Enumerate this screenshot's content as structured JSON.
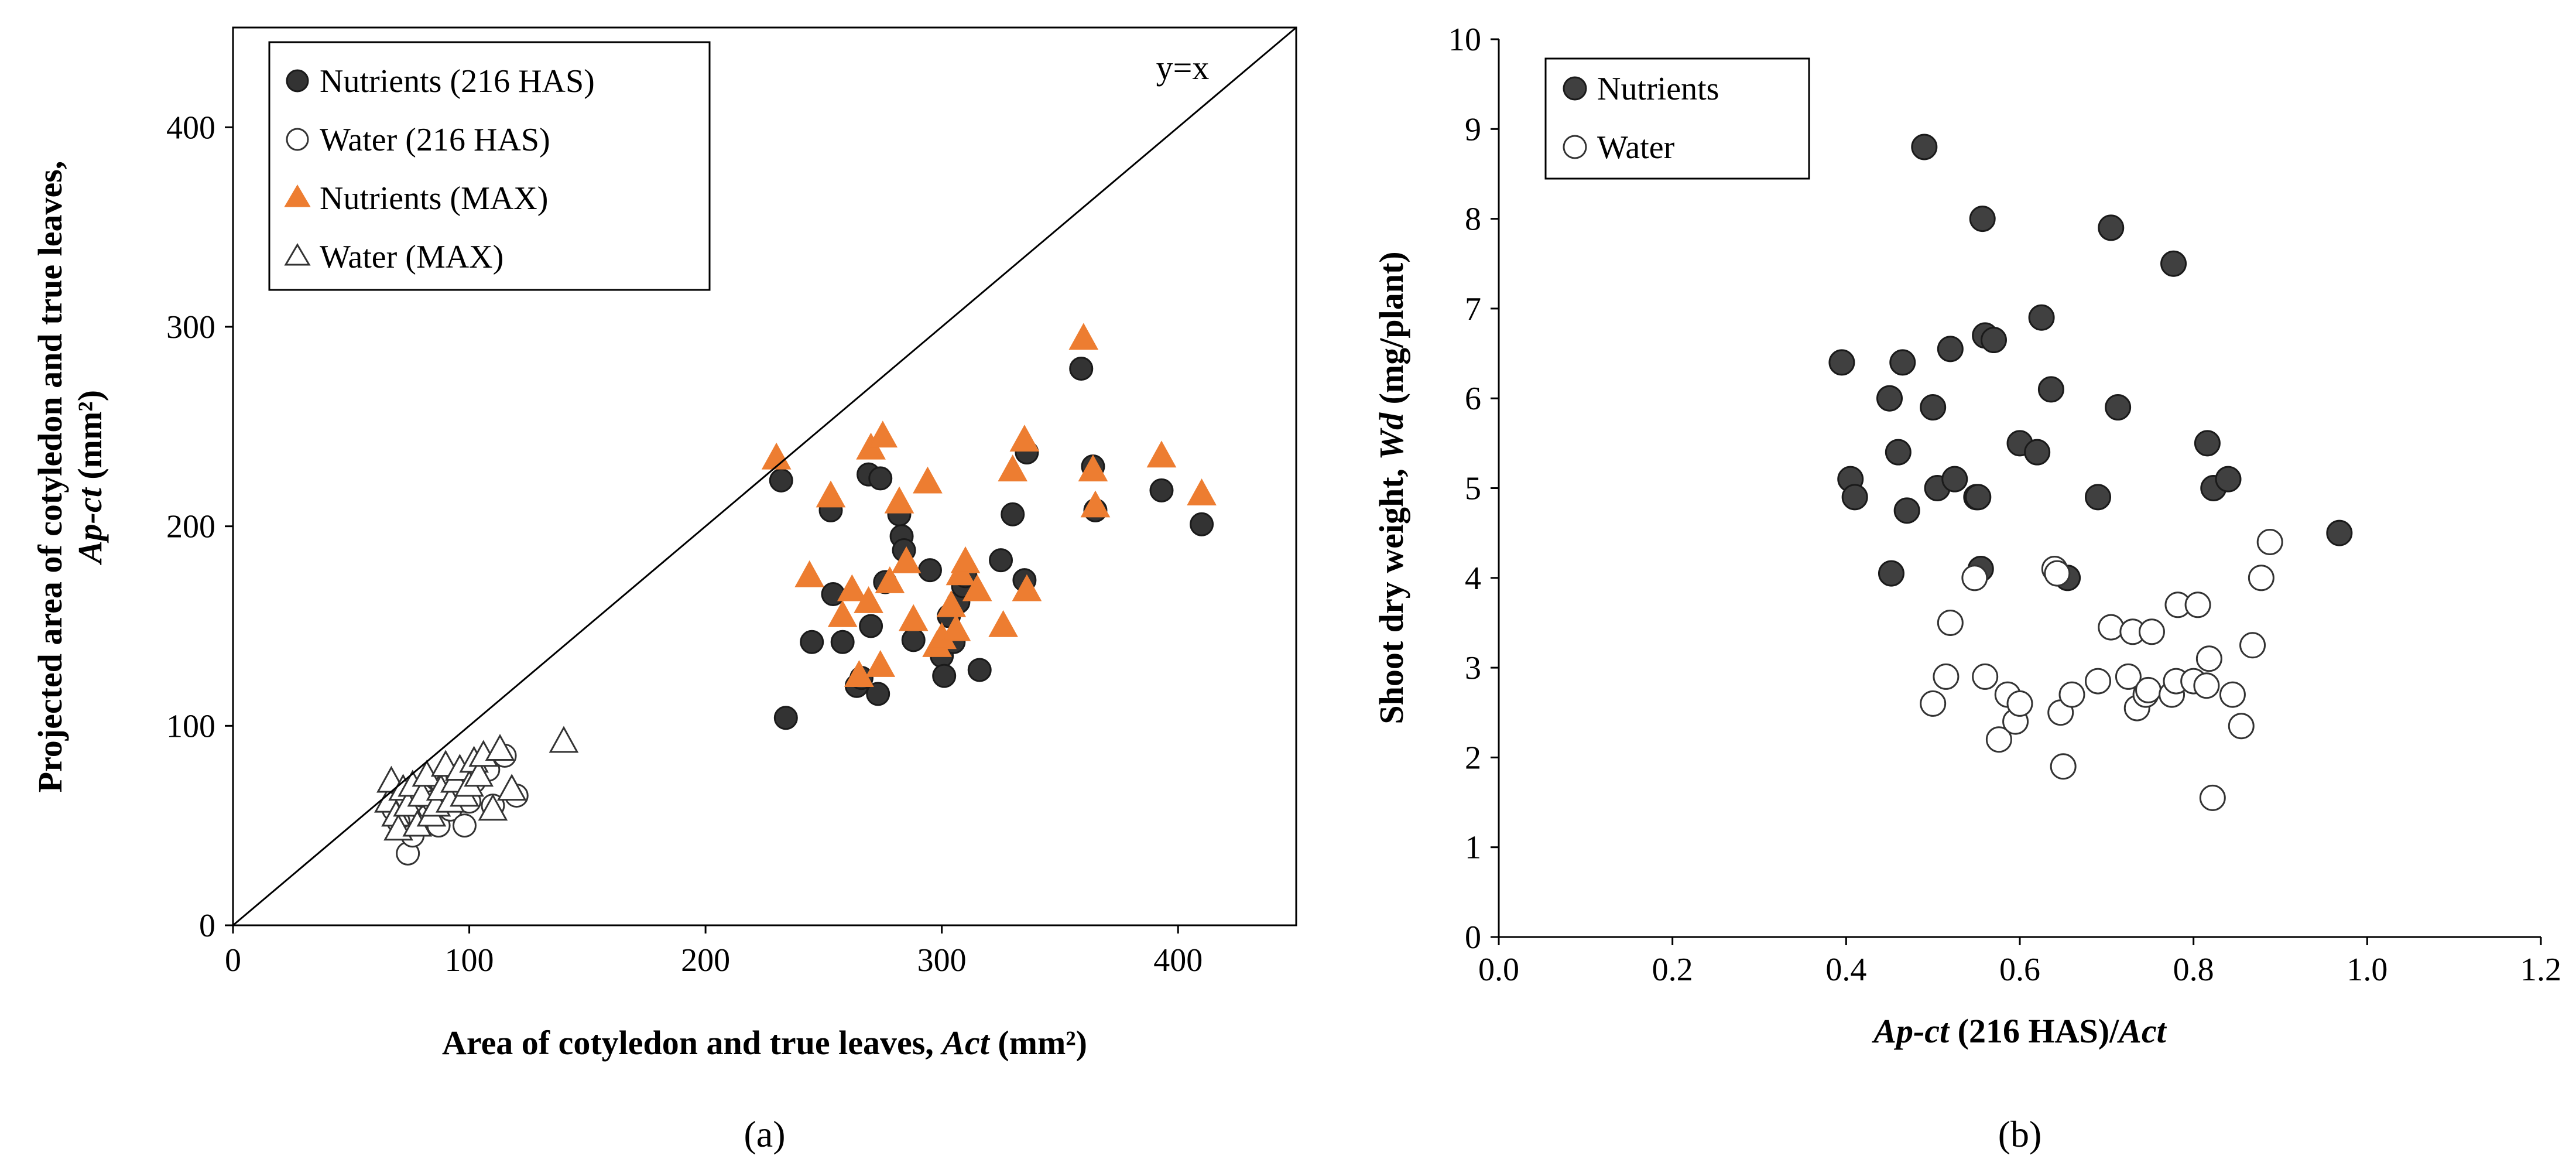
{
  "chart_data": [
    {
      "type": "scatter",
      "panel_label": "(a)",
      "xlabel": {
        "prefix": "Area of cotyledon and true leaves, ",
        "var": "Act",
        "suffix": " (mm²)"
      },
      "ylabel": {
        "line1": "Projected area of cotyledon and true leaves,",
        "var": "Ap-ct",
        "suffix": " (mm²)"
      },
      "xlim": [
        0,
        450
      ],
      "ylim": [
        0,
        450
      ],
      "xticks": [
        0,
        100,
        200,
        300,
        400
      ],
      "yticks": [
        0,
        100,
        200,
        300,
        400
      ],
      "grid": false,
      "legend_position": "top-left",
      "annotation": "y=x",
      "reference_line": {
        "label": "y=x",
        "from": [
          0,
          0
        ],
        "to": [
          450,
          450
        ]
      },
      "series": [
        {
          "name": "Nutrients (216 HAS)",
          "marker": "circle",
          "fill": "#333333",
          "stroke": "#1a1a1a",
          "points": [
            [
              232,
              223
            ],
            [
              234,
              104
            ],
            [
              245,
              142
            ],
            [
              253,
              208
            ],
            [
              254,
              166
            ],
            [
              258,
              142
            ],
            [
              264,
              120
            ],
            [
              266,
              124
            ],
            [
              269,
              226
            ],
            [
              270,
              150
            ],
            [
              273,
              116
            ],
            [
              274,
              224
            ],
            [
              276,
              172
            ],
            [
              282,
              206
            ],
            [
              283,
              195
            ],
            [
              284,
              188
            ],
            [
              288,
              143
            ],
            [
              295,
              178
            ],
            [
              300,
              135
            ],
            [
              301,
              125
            ],
            [
              303,
              155
            ],
            [
              305,
              142
            ],
            [
              307,
              162
            ],
            [
              309,
              170
            ],
            [
              310,
              175
            ],
            [
              316,
              128
            ],
            [
              325,
              183
            ],
            [
              330,
              206
            ],
            [
              335,
              173
            ],
            [
              336,
              237
            ],
            [
              359,
              279
            ],
            [
              364,
              230
            ],
            [
              365,
              208
            ],
            [
              393,
              218
            ],
            [
              410,
              201
            ]
          ]
        },
        {
          "name": "Water (216 HAS)",
          "marker": "circle",
          "fill": "#ffffff",
          "stroke": "#333333",
          "points": [
            [
              68,
              58
            ],
            [
              70,
              52
            ],
            [
              72,
              62
            ],
            [
              74,
              36
            ],
            [
              76,
              45
            ],
            [
              78,
              60
            ],
            [
              80,
              65
            ],
            [
              83,
              55
            ],
            [
              85,
              62
            ],
            [
              87,
              50
            ],
            [
              88,
              72
            ],
            [
              90,
              70
            ],
            [
              92,
              58
            ],
            [
              95,
              75
            ],
            [
              96,
              68
            ],
            [
              98,
              50
            ],
            [
              100,
              62
            ],
            [
              102,
              72
            ],
            [
              105,
              80
            ],
            [
              108,
              78
            ],
            [
              110,
              60
            ],
            [
              115,
              85
            ],
            [
              120,
              65
            ]
          ]
        },
        {
          "name": "Nutrients (MAX)",
          "marker": "triangle",
          "fill": "#ed7d31",
          "stroke": "#ed7d31",
          "points": [
            [
              230,
              234
            ],
            [
              244,
              175
            ],
            [
              253,
              215
            ],
            [
              258,
              155
            ],
            [
              262,
              168
            ],
            [
              265,
              125
            ],
            [
              269,
              162
            ],
            [
              270,
              239
            ],
            [
              274,
              130
            ],
            [
              275,
              245
            ],
            [
              278,
              172
            ],
            [
              282,
              212
            ],
            [
              285,
              182
            ],
            [
              288,
              153
            ],
            [
              294,
              222
            ],
            [
              298,
              140
            ],
            [
              300,
              144
            ],
            [
              304,
              160
            ],
            [
              306,
              148
            ],
            [
              308,
              176
            ],
            [
              310,
              182
            ],
            [
              315,
              168
            ],
            [
              326,
              150
            ],
            [
              330,
              228
            ],
            [
              335,
              243
            ],
            [
              336,
              168
            ],
            [
              360,
              294
            ],
            [
              364,
              228
            ],
            [
              365,
              210
            ],
            [
              393,
              235
            ],
            [
              410,
              216
            ]
          ]
        },
        {
          "name": "Water (MAX)",
          "marker": "triangle",
          "fill": "#ffffff",
          "stroke": "#333333",
          "points": [
            [
              66,
              62
            ],
            [
              67,
              72
            ],
            [
              69,
              55
            ],
            [
              70,
              48
            ],
            [
              72,
              68
            ],
            [
              74,
              60
            ],
            [
              76,
              70
            ],
            [
              78,
              50
            ],
            [
              80,
              65
            ],
            [
              82,
              75
            ],
            [
              84,
              55
            ],
            [
              86,
              60
            ],
            [
              88,
              68
            ],
            [
              90,
              80
            ],
            [
              92,
              62
            ],
            [
              94,
              72
            ],
            [
              96,
              78
            ],
            [
              98,
              65
            ],
            [
              100,
              70
            ],
            [
              102,
              82
            ],
            [
              104,
              75
            ],
            [
              106,
              85
            ],
            [
              110,
              58
            ],
            [
              113,
              88
            ],
            [
              118,
              68
            ],
            [
              140,
              92
            ]
          ]
        }
      ]
    },
    {
      "type": "scatter",
      "panel_label": "(b)",
      "xlabel": {
        "var1": "Ap-ct",
        "middle": " (216 HAS)/",
        "var2": "Act"
      },
      "ylabel": {
        "prefix": "Shoot dry weight, ",
        "var": "Wd",
        "suffix": " (mg/plant)"
      },
      "xlim": [
        0,
        1.2
      ],
      "ylim": [
        0,
        10
      ],
      "xticks": [
        "0.0",
        "0.2",
        "0.4",
        "0.6",
        "0.8",
        "1.0",
        "1.2"
      ],
      "yticks": [
        "0",
        "1",
        "2",
        "3",
        "4",
        "5",
        "6",
        "7",
        "8",
        "9",
        "10"
      ],
      "grid": false,
      "legend_position": "top-left",
      "series": [
        {
          "name": "Nutrients",
          "marker": "circle",
          "fill": "#404040",
          "stroke": "#1a1a1a",
          "points": [
            [
              0.395,
              6.4
            ],
            [
              0.405,
              5.1
            ],
            [
              0.41,
              4.9
            ],
            [
              0.45,
              6.0
            ],
            [
              0.452,
              4.05
            ],
            [
              0.46,
              5.4
            ],
            [
              0.465,
              6.4
            ],
            [
              0.47,
              4.75
            ],
            [
              0.49,
              8.8
            ],
            [
              0.5,
              5.9
            ],
            [
              0.505,
              5.0
            ],
            [
              0.52,
              6.55
            ],
            [
              0.525,
              5.1
            ],
            [
              0.55,
              4.9
            ],
            [
              0.552,
              4.9
            ],
            [
              0.555,
              4.1
            ],
            [
              0.557,
              8.0
            ],
            [
              0.56,
              6.7
            ],
            [
              0.57,
              6.65
            ],
            [
              0.6,
              5.5
            ],
            [
              0.62,
              5.4
            ],
            [
              0.625,
              6.9
            ],
            [
              0.636,
              6.1
            ],
            [
              0.655,
              4.0
            ],
            [
              0.69,
              4.9
            ],
            [
              0.705,
              7.9
            ],
            [
              0.713,
              5.9
            ],
            [
              0.777,
              7.5
            ],
            [
              0.816,
              5.5
            ],
            [
              0.823,
              5.0
            ],
            [
              0.84,
              5.1
            ],
            [
              0.968,
              4.5
            ]
          ]
        },
        {
          "name": "Water",
          "marker": "circle",
          "fill": "#ffffff",
          "stroke": "#333333",
          "points": [
            [
              0.5,
              2.6
            ],
            [
              0.515,
              2.9
            ],
            [
              0.52,
              3.5
            ],
            [
              0.548,
              4.0
            ],
            [
              0.56,
              2.9
            ],
            [
              0.576,
              2.2
            ],
            [
              0.586,
              2.7
            ],
            [
              0.595,
              2.4
            ],
            [
              0.6,
              2.6
            ],
            [
              0.64,
              4.1
            ],
            [
              0.643,
              4.05
            ],
            [
              0.647,
              2.5
            ],
            [
              0.65,
              1.9
            ],
            [
              0.66,
              2.7
            ],
            [
              0.69,
              2.85
            ],
            [
              0.705,
              3.45
            ],
            [
              0.725,
              2.9
            ],
            [
              0.73,
              3.4
            ],
            [
              0.735,
              2.55
            ],
            [
              0.745,
              2.7
            ],
            [
              0.748,
              2.75
            ],
            [
              0.752,
              3.4
            ],
            [
              0.775,
              2.7
            ],
            [
              0.78,
              2.85
            ],
            [
              0.782,
              3.7
            ],
            [
              0.8,
              2.85
            ],
            [
              0.805,
              3.7
            ],
            [
              0.815,
              2.8
            ],
            [
              0.818,
              3.1
            ],
            [
              0.822,
              1.55
            ],
            [
              0.845,
              2.7
            ],
            [
              0.855,
              2.35
            ],
            [
              0.868,
              3.25
            ],
            [
              0.878,
              4.0
            ],
            [
              0.888,
              4.4
            ]
          ]
        }
      ]
    }
  ]
}
